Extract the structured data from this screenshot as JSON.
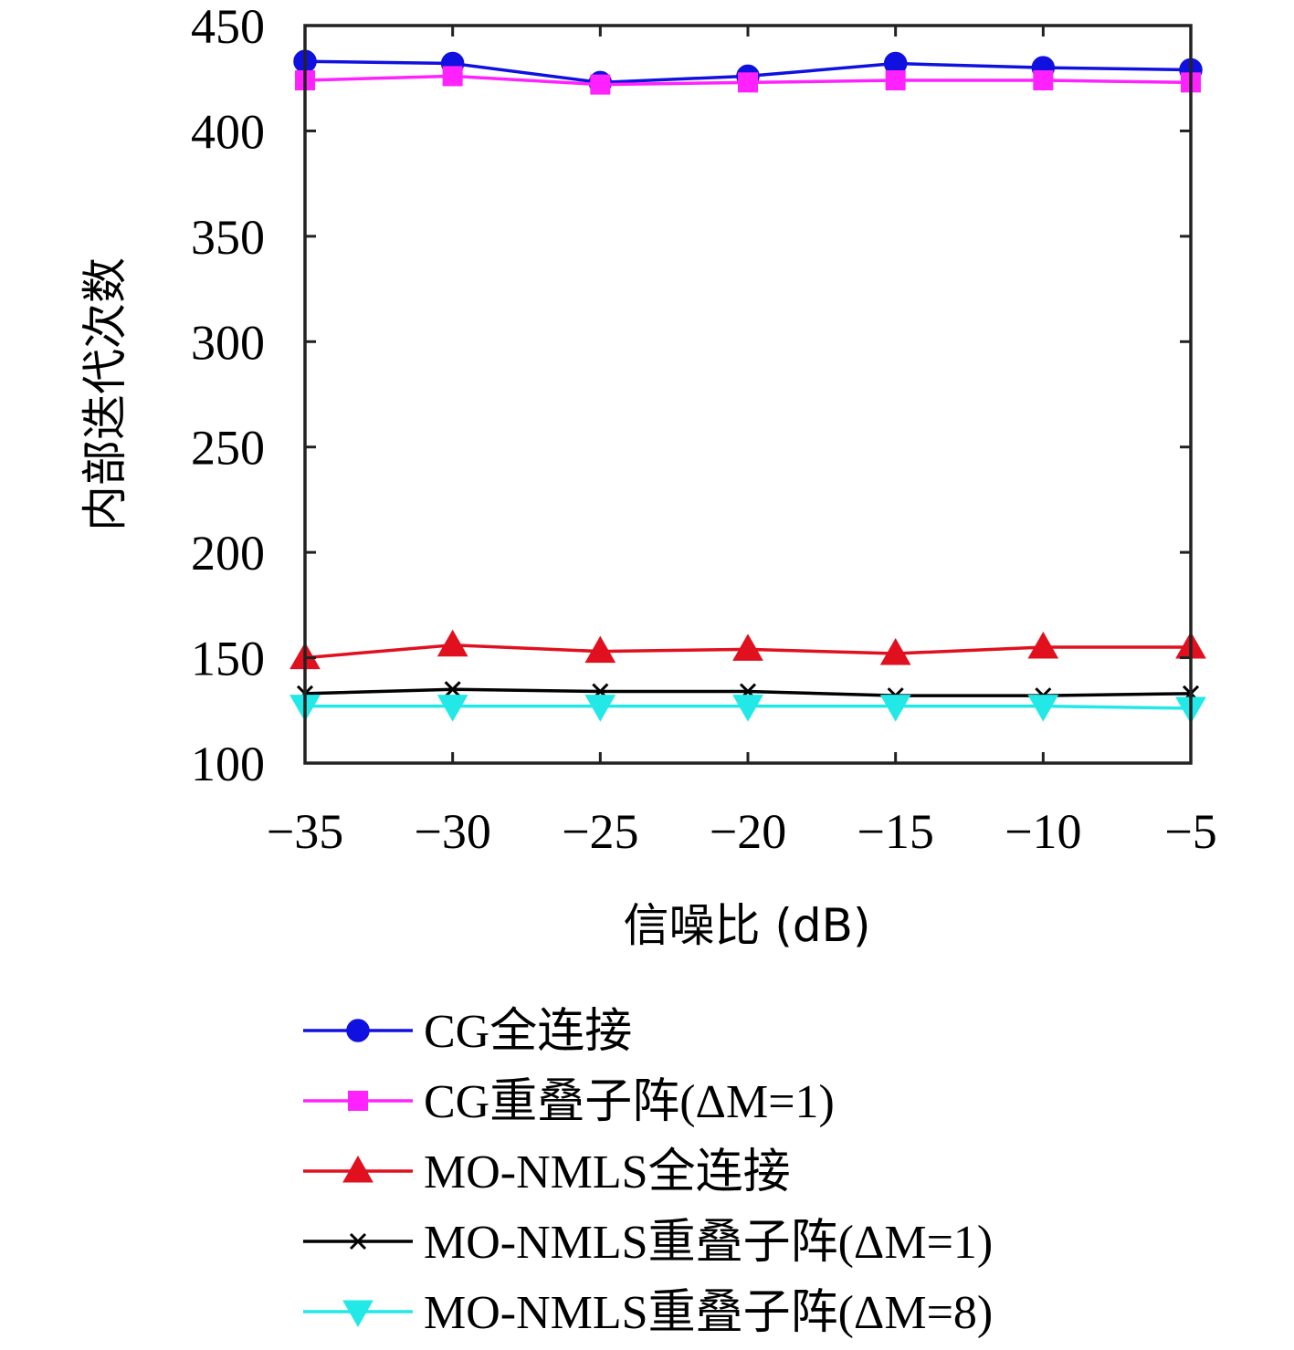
{
  "chart_data": {
    "type": "line",
    "xlabel": "信噪比 (dB)",
    "ylabel": "内部迭代次数",
    "x": [
      -35,
      -30,
      -25,
      -20,
      -15,
      -10,
      -5
    ],
    "xticks": [
      "−35",
      "−30",
      "−25",
      "−20",
      "−15",
      "−10",
      "−5"
    ],
    "yticks": [
      "100",
      "150",
      "200",
      "250",
      "300",
      "350",
      "400",
      "450"
    ],
    "xlim": [
      -35,
      -5
    ],
    "ylim": [
      100,
      450
    ],
    "grid": false,
    "legend_position": "bottom",
    "series": [
      {
        "name": "CG全连接",
        "color": "#1010e0",
        "marker": "circle",
        "values": [
          433,
          432,
          423,
          426,
          432,
          430,
          429
        ]
      },
      {
        "name": "CG重叠子阵(ΔM=1)",
        "color": "#ff22ff",
        "marker": "square",
        "values": [
          424,
          426,
          422,
          423,
          424,
          424,
          423
        ]
      },
      {
        "name": "MO-NMLS全连接",
        "color": "#e0101e",
        "marker": "triangle-up",
        "values": [
          150,
          156,
          153,
          154,
          152,
          155,
          155
        ]
      },
      {
        "name": "MO-NMLS重叠子阵(ΔM=1)",
        "color": "#000000",
        "marker": "x",
        "values": [
          133,
          135,
          134,
          134,
          132,
          132,
          133
        ]
      },
      {
        "name": "MO-NMLS重叠子阵(ΔM=8)",
        "color": "#22e8e8",
        "marker": "triangle-down",
        "values": [
          127,
          127,
          127,
          127,
          127,
          127,
          126
        ]
      }
    ]
  }
}
